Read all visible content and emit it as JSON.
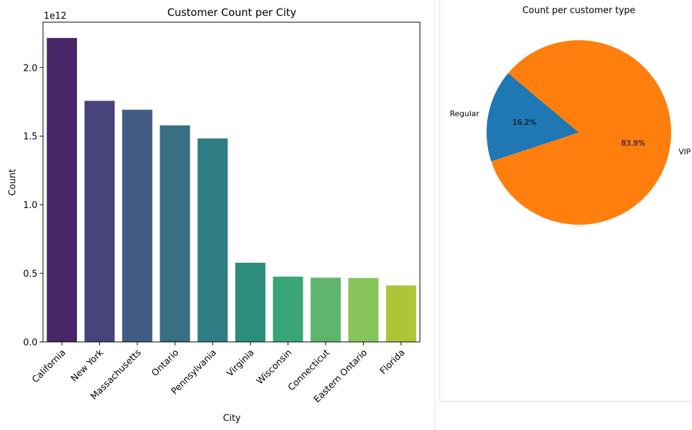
{
  "chart_data": [
    {
      "type": "bar",
      "title": "Customer Count per City",
      "xlabel": "City",
      "ylabel": "Count",
      "y_offset_label": "1e12",
      "ylim": [
        0,
        2.33
      ],
      "yticks": [
        0.0,
        0.5,
        1.0,
        1.5,
        2.0
      ],
      "ytick_labels": [
        "0.0",
        "0.5",
        "1.0",
        "1.5",
        "2.0"
      ],
      "categories": [
        "California",
        "New York",
        "Massachusetts",
        "Ontario",
        "Pennsylvania",
        "Virginia",
        "Wisconsin",
        "Connecticut",
        "Eastern Ontario",
        "Florida"
      ],
      "values": [
        2.215,
        1.757,
        1.692,
        1.578,
        1.483,
        0.577,
        0.476,
        0.468,
        0.466,
        0.412
      ],
      "colors": [
        "#482566",
        "#48437b",
        "#435c84",
        "#396e83",
        "#2f7e85",
        "#2c8d7a",
        "#3aa577",
        "#60b56c",
        "#86c55a",
        "#b0c437"
      ],
      "grid": false
    },
    {
      "type": "pie",
      "title": "Count per customer type",
      "labels": [
        "Regular",
        "VIP"
      ],
      "values": [
        16.2,
        83.8
      ],
      "pct_labels": [
        "16.2%",
        "83.8%"
      ],
      "colors": [
        "#1f77b4",
        "#ff7f0e"
      ]
    }
  ]
}
